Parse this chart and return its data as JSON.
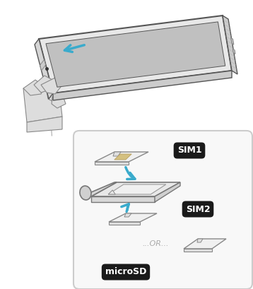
{
  "bg_color": "#ffffff",
  "box_fill": "#f8f8f8",
  "box_edge": "#cccccc",
  "phone_body": "#e8e8e8",
  "phone_screen": "#c0c0c0",
  "phone_edge_color": "#555555",
  "phone_side_color": "#d8d8d8",
  "arrow_color": "#3aabcc",
  "label_bg": "#1a1a1a",
  "label_fg": "#ffffff",
  "or_color": "#aaaaaa",
  "card_fill": "#f2f2f2",
  "card_edge": "#999999",
  "tray_fill": "#e5e5e5",
  "tray_inner": "#f0f0f0",
  "sim1_label": "SIM1",
  "sim2_label": "SIM2",
  "microsd_label": "microSD",
  "figsize": [
    3.58,
    4.09
  ],
  "dpi": 100
}
